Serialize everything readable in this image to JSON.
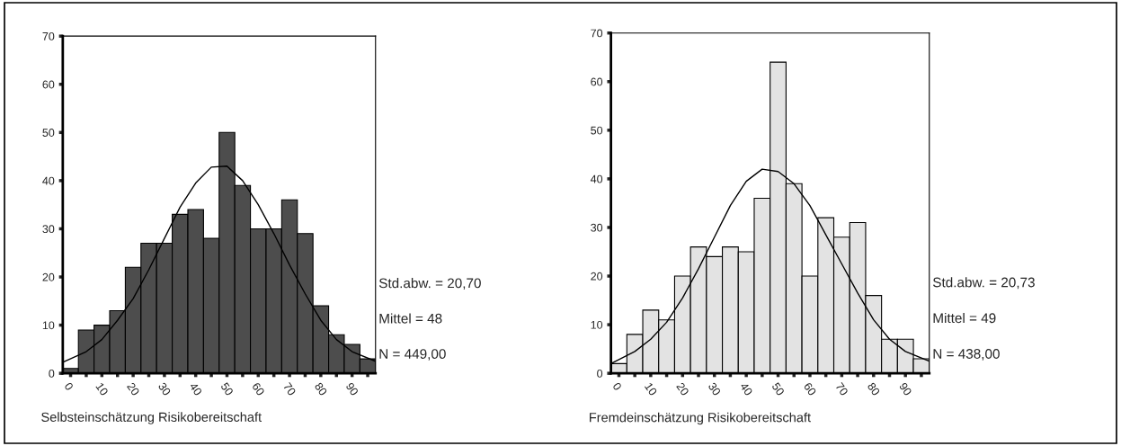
{
  "chart_data": [
    {
      "type": "histogram",
      "xlabel": "Selbsteinschätzung Risikobereitschaft",
      "color": "#4d4d4d",
      "bins": [
        -2.5,
        2.5,
        7.5,
        12.5,
        17.5,
        22.5,
        27.5,
        32.5,
        37.5,
        42.5,
        47.5,
        52.5,
        57.5,
        62.5,
        67.5,
        72.5,
        77.5,
        82.5,
        87.5,
        92.5,
        97.5
      ],
      "values": [
        1,
        9,
        10,
        13,
        22,
        27,
        27,
        33,
        34,
        28,
        50,
        39,
        30,
        30,
        36,
        29,
        14,
        8,
        6,
        3
      ],
      "series": [
        {
          "type": "line",
          "color": "#000000",
          "x": [
            -2.5,
            5,
            10,
            15,
            20,
            25,
            30,
            35,
            40,
            45,
            50,
            55,
            60,
            65,
            70,
            75,
            80,
            85,
            90,
            97.5
          ],
          "values": [
            2.3,
            4.5,
            7,
            11,
            15.5,
            21.5,
            28,
            34.5,
            39.5,
            42.8,
            43,
            40,
            35,
            29,
            22.5,
            16.5,
            11,
            7,
            4.5,
            2.5
          ]
        }
      ],
      "xlim": [
        -2.5,
        97.5
      ],
      "ylim": [
        0,
        70
      ],
      "xticks": [
        0,
        {
          "value": 5,
          "label": null
        },
        10,
        {
          "value": 15,
          "label": null
        },
        20,
        {
          "value": 25,
          "label": null
        },
        30,
        {
          "value": 35,
          "label": null
        },
        40,
        {
          "value": 45,
          "label": null
        },
        50,
        {
          "value": 55,
          "label": null
        },
        60,
        {
          "value": 65,
          "label": null
        },
        70,
        {
          "value": 75,
          "label": null
        },
        80,
        {
          "value": 85,
          "label": null
        },
        90,
        {
          "value": 95,
          "label": null
        }
      ],
      "yticks": [
        0,
        10,
        20,
        30,
        40,
        50,
        60,
        70
      ],
      "grid": false,
      "annotations": [
        "Std.abw. = 20,70",
        "Mittel = 48",
        "N = 449,00"
      ]
    },
    {
      "type": "histogram",
      "xlabel": "Fremdeinschätzung Risikobereitschaft",
      "color": "#e3e3e3",
      "bins": [
        -2.5,
        2.5,
        7.5,
        12.5,
        17.5,
        22.5,
        27.5,
        32.5,
        37.5,
        42.5,
        47.5,
        52.5,
        57.5,
        62.5,
        67.5,
        72.5,
        77.5,
        82.5,
        87.5,
        92.5,
        97.5
      ],
      "values": [
        2,
        8,
        13,
        11,
        20,
        26,
        24,
        26,
        25,
        36,
        64,
        39,
        20,
        32,
        28,
        31,
        16,
        7,
        7,
        3
      ],
      "series": [
        {
          "type": "line",
          "color": "#000000",
          "x": [
            -2.5,
            5,
            10,
            15,
            20,
            25,
            30,
            35,
            40,
            45,
            50,
            55,
            60,
            65,
            70,
            75,
            80,
            85,
            90,
            97.5
          ],
          "values": [
            2,
            4.5,
            7,
            10.5,
            15.5,
            21.5,
            28,
            34.5,
            39.5,
            42,
            41.5,
            39,
            34.5,
            28.5,
            22.5,
            16.5,
            11,
            7,
            4.5,
            2.5
          ]
        }
      ],
      "xlim": [
        -2.5,
        97.5
      ],
      "ylim": [
        0,
        70
      ],
      "xticks": [
        0,
        {
          "value": 5,
          "label": null
        },
        10,
        {
          "value": 15,
          "label": null
        },
        20,
        {
          "value": 25,
          "label": null
        },
        30,
        {
          "value": 35,
          "label": null
        },
        40,
        {
          "value": 45,
          "label": null
        },
        50,
        {
          "value": 55,
          "label": null
        },
        60,
        {
          "value": 65,
          "label": null
        },
        70,
        {
          "value": 75,
          "label": null
        },
        80,
        {
          "value": 85,
          "label": null
        },
        90,
        {
          "value": 95,
          "label": null
        }
      ],
      "yticks": [
        0,
        10,
        20,
        30,
        40,
        50,
        60,
        70
      ],
      "grid": false,
      "annotations": [
        "Std.abw. = 20,73",
        "Mittel = 49",
        "N = 438,00"
      ]
    }
  ]
}
